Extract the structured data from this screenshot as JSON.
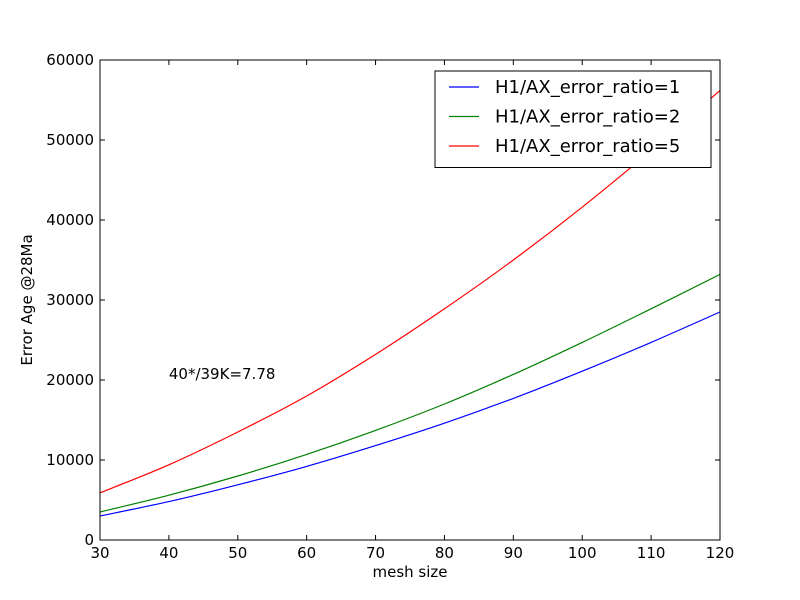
{
  "chart_data": {
    "type": "line",
    "title": "",
    "xlabel": "mesh size",
    "ylabel": "Error Age @28Ma",
    "xlim": [
      30,
      120
    ],
    "ylim": [
      0,
      60000
    ],
    "xticks": [
      30,
      40,
      50,
      60,
      70,
      80,
      90,
      100,
      110,
      120
    ],
    "yticks": [
      0,
      10000,
      20000,
      30000,
      40000,
      50000,
      60000
    ],
    "grid": false,
    "legend_position": "top-right",
    "annotation": {
      "text": "40*/39K=7.78",
      "x": 40,
      "y": 20000
    },
    "x": [
      30,
      40,
      50,
      60,
      70,
      80,
      90,
      100,
      110,
      120
    ],
    "series": [
      {
        "name": "H1/AX_error_ratio=1",
        "color": "#0000ff",
        "values": [
          3000,
          4800,
          6900,
          9200,
          11800,
          14600,
          17700,
          21100,
          24700,
          28500
        ]
      },
      {
        "name": "H1/AX_error_ratio=2",
        "color": "#008000",
        "values": [
          3500,
          5600,
          8000,
          10700,
          13700,
          17000,
          20700,
          24700,
          28900,
          33200
        ]
      },
      {
        "name": "H1/AX_error_ratio=5",
        "color": "#ff0000",
        "values": [
          5900,
          9400,
          13500,
          18000,
          23200,
          28900,
          35000,
          41600,
          48700,
          56200
        ]
      }
    ]
  }
}
